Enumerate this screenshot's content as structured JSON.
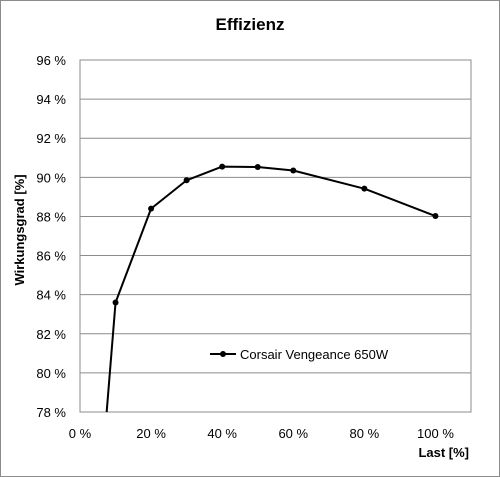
{
  "chart_data": {
    "type": "line",
    "title": "Effizienz",
    "xlabel": "Last [%]",
    "ylabel": "Wirkungsgrad [%]",
    "xlim": [
      0,
      110
    ],
    "ylim": [
      78,
      96
    ],
    "x_ticks": [
      0,
      20,
      40,
      60,
      80,
      100
    ],
    "x_tick_labels": [
      "0 %",
      "20 %",
      "40 %",
      "60 %",
      "80 %",
      "100 %"
    ],
    "y_ticks": [
      78,
      80,
      82,
      84,
      86,
      88,
      90,
      92,
      94,
      96
    ],
    "y_tick_labels": [
      "78 %",
      "80 %",
      "82 %",
      "84 %",
      "86 %",
      "88 %",
      "90 %",
      "92 %",
      "94 %",
      "96 %"
    ],
    "grid": "horizontal",
    "legend": "inside-lower-center",
    "series": [
      {
        "name": "Corsair Vengeance 650W",
        "color": "#000000",
        "x": [
          10,
          20,
          30,
          40,
          50,
          60,
          80,
          100
        ],
        "y": [
          83.6,
          88.4,
          89.85,
          90.55,
          90.53,
          90.35,
          89.42,
          88.02
        ],
        "line_start": {
          "x": 7.5,
          "y": 78
        }
      }
    ]
  }
}
